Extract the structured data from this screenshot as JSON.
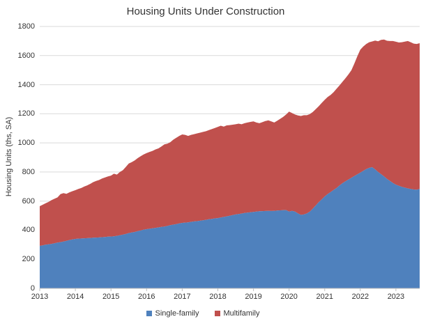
{
  "title": "Housing Units Under Construction",
  "chart_data": {
    "type": "area",
    "stacked": true,
    "title": "Housing Units Under Construction",
    "ylabel": "Housing Units (ths, SA)",
    "ylim": [
      0,
      1800
    ],
    "ytick_step": 200,
    "ytick_labels": [
      "0",
      "200",
      "400",
      "600",
      "800",
      "1000",
      "1200",
      "1400",
      "1600",
      "1800"
    ],
    "x_tick_labels": [
      "2013",
      "2014",
      "2015",
      "2016",
      "2017",
      "2018",
      "2019",
      "2020",
      "2021",
      "2022",
      "2023"
    ],
    "x_start": "2013-01",
    "x_end": "2023-09",
    "x_frequency": "monthly",
    "grid": "horizontal",
    "gridline_color": "#d9d9d9",
    "axis_line_color": "#bfbfbf",
    "legend_position": "bottom",
    "series": [
      {
        "name": "Single-family",
        "color": "#4F81BD",
        "values": [
          292,
          296,
          300,
          303,
          306,
          310,
          315,
          318,
          322,
          327,
          332,
          336,
          340,
          342,
          343,
          344,
          345,
          346,
          348,
          349,
          350,
          352,
          353,
          355,
          356,
          358,
          361,
          365,
          369,
          374,
          380,
          384,
          388,
          393,
          398,
          403,
          407,
          410,
          413,
          416,
          419,
          422,
          425,
          429,
          434,
          438,
          442,
          446,
          450,
          452,
          454,
          457,
          460,
          462,
          465,
          468,
          471,
          475,
          478,
          481,
          483,
          487,
          491,
          495,
          499,
          504,
          508,
          511,
          514,
          518,
          521,
          523,
          525,
          528,
          530,
          531,
          532,
          533,
          532,
          533,
          535,
          536,
          537,
          538,
          528,
          533,
          528,
          515,
          505,
          508,
          515,
          528,
          548,
          570,
          592,
          612,
          632,
          648,
          662,
          676,
          690,
          707,
          723,
          736,
          748,
          760,
          772,
          784,
          795,
          808,
          820,
          828,
          833,
          818,
          800,
          785,
          770,
          752,
          738,
          724,
          713,
          705,
          698,
          692,
          687,
          683,
          680,
          678,
          683
        ]
      },
      {
        "name": "Multifamily",
        "color": "#C0504D",
        "values": [
          273,
          279,
          285,
          292,
          301,
          306,
          310,
          330,
          333,
          323,
          328,
          332,
          335,
          341,
          347,
          356,
          363,
          372,
          382,
          389,
          395,
          403,
          409,
          415,
          419,
          430,
          421,
          435,
          443,
          461,
          478,
          484,
          492,
          502,
          510,
          517,
          523,
          528,
          532,
          539,
          543,
          553,
          565,
          566,
          571,
          584,
          593,
          602,
          608,
          603,
          594,
          598,
          600,
          603,
          605,
          607,
          609,
          613,
          617,
          621,
          627,
          631,
          621,
          625,
          623,
          621,
          620,
          621,
          614,
          617,
          619,
          621,
          623,
          612,
          605,
          611,
          618,
          622,
          616,
          607,
          617,
          629,
          641,
          657,
          687,
          672,
          667,
          673,
          680,
          682,
          675,
          670,
          664,
          662,
          660,
          663,
          664,
          667,
          668,
          672,
          682,
          688,
          697,
          709,
          722,
          740,
          773,
          811,
          845,
          854,
          860,
          864,
          864,
          885,
          898,
          923,
          940,
          950,
          962,
          976,
          982,
          985,
          994,
          1004,
          1013,
          1009,
          1002,
          1002,
          1002
        ]
      }
    ]
  }
}
